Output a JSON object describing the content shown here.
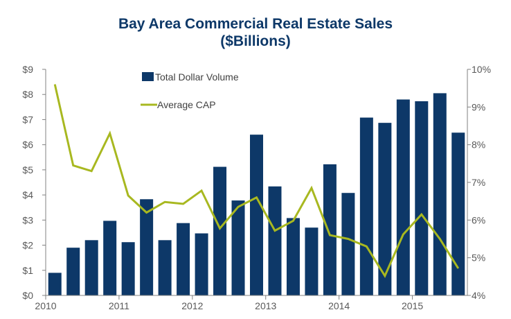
{
  "colors": {
    "bar": "#0d3868",
    "line": "#a8b820",
    "title": "#0d3868",
    "axis": "#808080",
    "tick_text": "#595959"
  },
  "chart_data": {
    "type": "bar",
    "title": "Bay Area Commercial Real Estate Sales",
    "subtitle": "($Billions)",
    "legend_position": "top-center",
    "grid": false,
    "x_tick_labels": [
      "2010",
      "2011",
      "2012",
      "2013",
      "2014",
      "2015"
    ],
    "y_left": {
      "ylim": [
        0,
        9
      ],
      "tick_labels": [
        "$0",
        "$1",
        "$2",
        "$3",
        "$4",
        "$5",
        "$6",
        "$7",
        "$8",
        "$9"
      ]
    },
    "y_right": {
      "ylim": [
        4,
        10
      ],
      "tick_labels": [
        "4%",
        "5%",
        "6%",
        "7%",
        "8%",
        "9%",
        "10%"
      ]
    },
    "series": [
      {
        "name": "Total Dollar Volume",
        "kind": "bar",
        "axis": "left",
        "values": [
          0.9,
          1.9,
          2.2,
          2.97,
          2.12,
          3.83,
          2.2,
          2.88,
          2.47,
          5.12,
          3.78,
          6.4,
          4.34,
          3.08,
          2.7,
          5.22,
          4.08,
          7.08,
          6.87,
          7.8,
          7.73,
          8.05,
          6.48
        ]
      },
      {
        "name": "Average CAP",
        "kind": "line",
        "axis": "right",
        "values": [
          9.6,
          7.45,
          7.3,
          8.3,
          6.65,
          6.2,
          6.48,
          6.43,
          6.78,
          5.78,
          6.35,
          6.6,
          5.72,
          5.98,
          6.85,
          5.6,
          5.5,
          5.3,
          4.52,
          5.62,
          6.15,
          5.5,
          4.72
        ]
      }
    ]
  }
}
